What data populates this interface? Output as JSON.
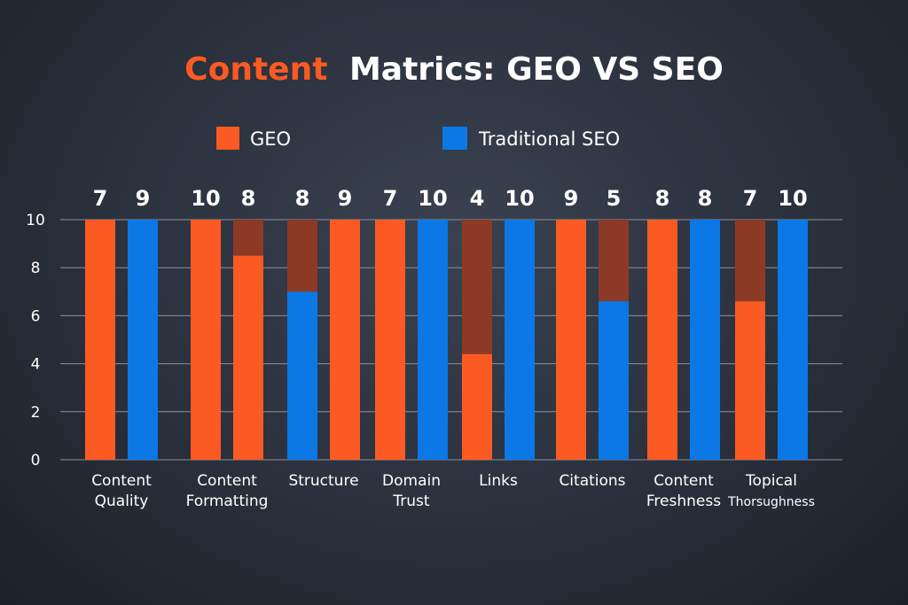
{
  "chart_data": {
    "type": "bar",
    "title": {
      "part1": "Content",
      "part2": "Matrics: GEO VS SEO"
    },
    "colors": {
      "geo": "#fb5a22",
      "seo": "#0b78e6",
      "overflow": "#8c3a25",
      "title_accent": "#fb5a22"
    },
    "categories": [
      [
        "Content",
        "Quality"
      ],
      [
        "Content",
        "Formatting"
      ],
      [
        "Structure"
      ],
      [
        "Domain",
        "Trust"
      ],
      [
        "Links"
      ],
      [
        "Citations"
      ],
      [
        "Content",
        "Freshness"
      ],
      [
        "Topical",
        "Thorsughness"
      ]
    ],
    "series": [
      {
        "name": "GEO",
        "labels": [
          "7",
          "10",
          "9",
          "7",
          "4",
          "9",
          "8",
          "7"
        ],
        "values": [
          10,
          10,
          10,
          10,
          10,
          10,
          10,
          10
        ],
        "solid": [
          10,
          10,
          10,
          10,
          4.4,
          10,
          10,
          6.6
        ],
        "pair_slot": [
          0,
          0,
          1,
          0,
          0,
          0,
          0,
          0
        ]
      },
      {
        "name": "Traditional SEO",
        "labels": [
          "9",
          "8",
          "8",
          "10",
          "10",
          "5",
          "8",
          "10"
        ],
        "values": [
          10,
          10,
          10,
          10,
          10,
          10,
          10,
          10
        ],
        "solid": [
          10,
          8.5,
          7.0,
          10,
          10,
          6.6,
          10,
          10
        ],
        "pair_slot": [
          1,
          1,
          1,
          1,
          1,
          1,
          1,
          1
        ],
        "color_override": [
          "seo",
          "geo",
          "geo",
          "seo",
          "seo",
          "seo",
          "seo",
          "seo"
        ]
      }
    ],
    "yticks": [
      "0",
      "2",
      "4",
      "6",
      "8",
      "10"
    ],
    "ylim": [
      0,
      10
    ],
    "grid": true,
    "legend_position": "top"
  }
}
